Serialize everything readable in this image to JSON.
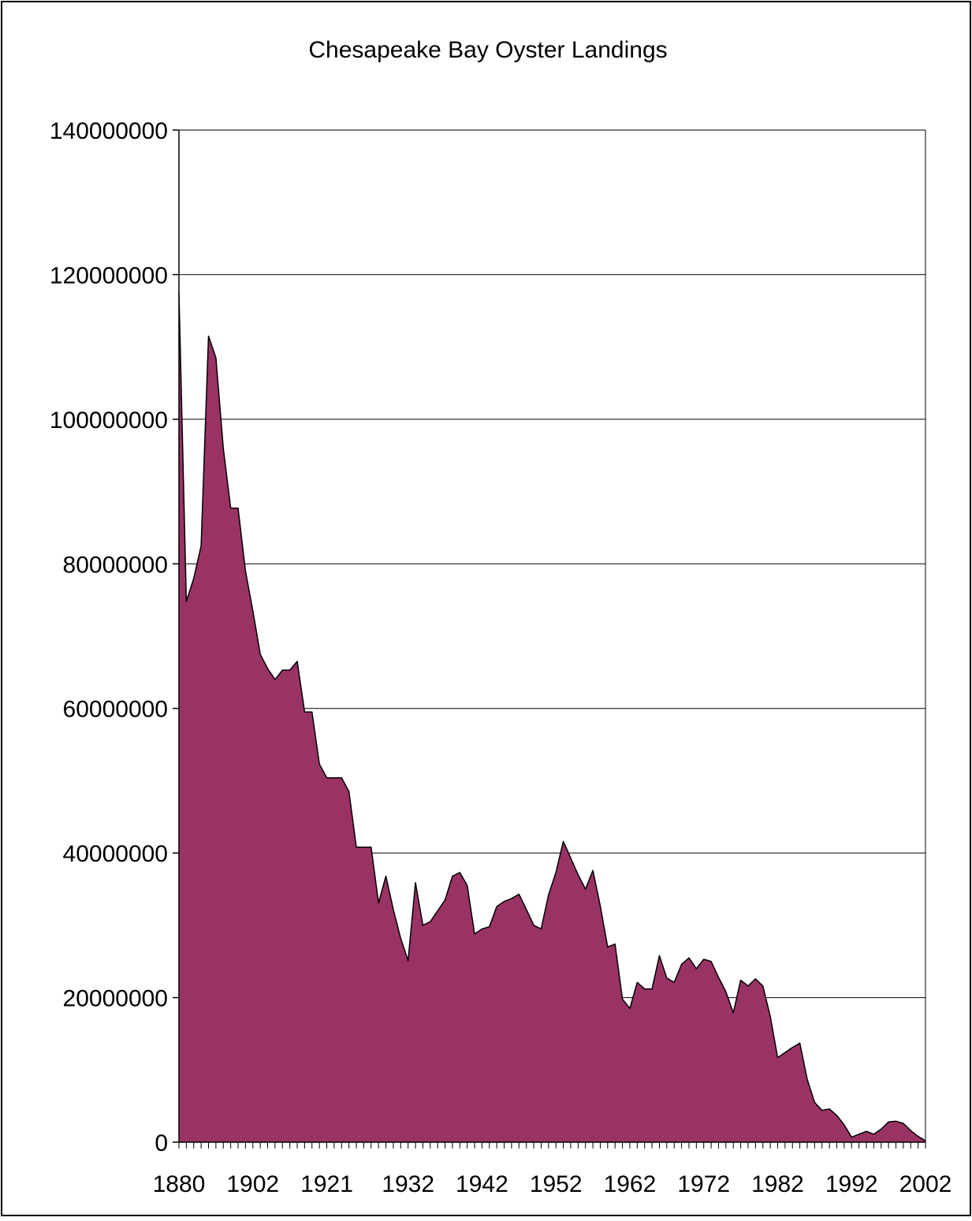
{
  "chart_data": {
    "type": "area",
    "title": "Chesapeake Bay Oyster Landings",
    "xlabel": "",
    "ylabel": "",
    "ylim": [
      0,
      140000000
    ],
    "yticks": [
      0,
      20000000,
      40000000,
      60000000,
      80000000,
      100000000,
      120000000,
      140000000
    ],
    "ytick_labels": [
      "0",
      "20000000",
      "40000000",
      "60000000",
      "80000000",
      "100000000",
      "120000000",
      "140000000"
    ],
    "x_tick_labels": [
      {
        "index": 0,
        "label": "1880"
      },
      {
        "index": 10,
        "label": "1902"
      },
      {
        "index": 20,
        "label": "1921"
      },
      {
        "index": 31,
        "label": "1932"
      },
      {
        "index": 41,
        "label": "1942"
      },
      {
        "index": 51,
        "label": "1952"
      },
      {
        "index": 61,
        "label": "1962"
      },
      {
        "index": 71,
        "label": "1972"
      },
      {
        "index": 81,
        "label": "1982"
      },
      {
        "index": 91,
        "label": "1992"
      },
      {
        "index": 101,
        "label": "2002"
      }
    ],
    "grid": true,
    "fill_color": "#993366",
    "line_color": "#000000",
    "series": [
      {
        "values": [
          117500000,
          74800000,
          78000000,
          82500000,
          111500000,
          108500000,
          96000000,
          87700000,
          87700000,
          79000000,
          73500000,
          67500000,
          65500000,
          64000000,
          65300000,
          65300000,
          66500000,
          59500000,
          59500000,
          52300000,
          50400000,
          50400000,
          50400000,
          48500000,
          40800000,
          40800000,
          40800000,
          33100000,
          36800000,
          32200000,
          28200000,
          25100000,
          35900000,
          30000000,
          30500000,
          32000000,
          33500000,
          36800000,
          37300000,
          35500000,
          28800000,
          29500000,
          29800000,
          32600000,
          33300000,
          33700000,
          34300000,
          32200000,
          30000000,
          29500000,
          34200000,
          37300000,
          41600000,
          39300000,
          37000000,
          35000000,
          37600000,
          32700000,
          27000000,
          27400000,
          19800000,
          18500000,
          22100000,
          21200000,
          21200000,
          25800000,
          22700000,
          22100000,
          24600000,
          25500000,
          24000000,
          25300000,
          25000000,
          22800000,
          20800000,
          17900000,
          22400000,
          21600000,
          22600000,
          21600000,
          17400000,
          11700000,
          12400000,
          13100000,
          13700000,
          8700000,
          5500000,
          4400000,
          4600000,
          3700000,
          2400000,
          700000,
          1100000,
          1500000,
          1100000,
          1800000,
          2800000,
          2900000,
          2600000,
          1600000,
          800000,
          200000
        ]
      }
    ]
  }
}
